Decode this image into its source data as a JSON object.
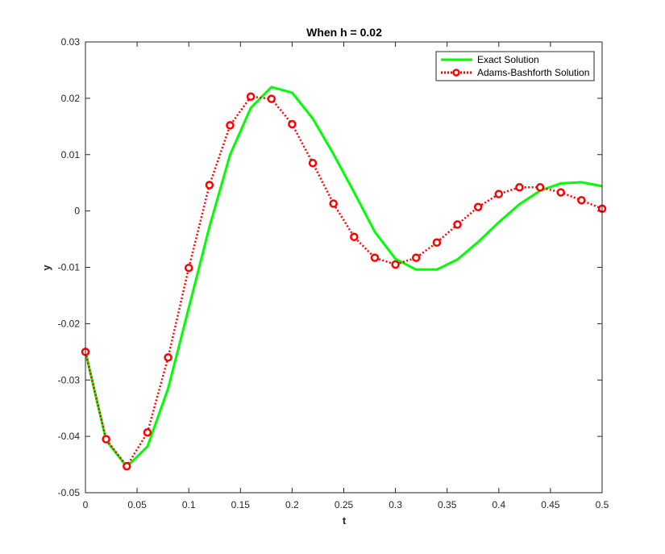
{
  "chart_data": {
    "type": "line",
    "title": "When h = 0.02",
    "xlabel": "t",
    "ylabel": "y",
    "xlim": [
      0,
      0.5
    ],
    "ylim": [
      -0.05,
      0.03
    ],
    "x_ticks": [
      0,
      0.05,
      0.1,
      0.15,
      0.2,
      0.25,
      0.3,
      0.35,
      0.4,
      0.45,
      0.5
    ],
    "x_tick_labels": [
      "0",
      "0.05",
      "0.1",
      "0.15",
      "0.2",
      "0.25",
      "0.3",
      "0.35",
      "0.4",
      "0.45",
      "0.5"
    ],
    "y_ticks": [
      -0.05,
      -0.04,
      -0.03,
      -0.02,
      -0.01,
      0,
      0.01,
      0.02,
      0.03
    ],
    "y_tick_labels": [
      "-0.05",
      "-0.04",
      "-0.03",
      "-0.02",
      "-0.01",
      "0",
      "0.01",
      "0.02",
      "0.03"
    ],
    "grid": false,
    "legend_position": "top-right",
    "series": [
      {
        "name": "Exact Solution",
        "color": "#00ff00",
        "style": "solid",
        "marker": "none",
        "x": [
          0,
          0.02,
          0.04,
          0.06,
          0.08,
          0.1,
          0.12,
          0.14,
          0.16,
          0.18,
          0.2,
          0.22,
          0.24,
          0.26,
          0.28,
          0.3,
          0.32,
          0.34,
          0.36,
          0.38,
          0.4,
          0.42,
          0.44,
          0.46,
          0.48,
          0.5
        ],
        "y": [
          -0.025,
          -0.0407,
          -0.0454,
          -0.0418,
          -0.0315,
          -0.0172,
          -0.0028,
          0.01,
          0.0183,
          0.022,
          0.021,
          0.0164,
          0.0101,
          0.0033,
          -0.0037,
          -0.0085,
          -0.0104,
          -0.0104,
          -0.0086,
          -0.0055,
          -0.002,
          0.0012,
          0.0036,
          0.0049,
          0.0051,
          0.0044
        ]
      },
      {
        "name": "Adams-Bashforth Solution",
        "color": "#ff0000",
        "style": "dotted",
        "marker": "circle",
        "x": [
          0,
          0.02,
          0.04,
          0.06,
          0.08,
          0.1,
          0.12,
          0.14,
          0.16,
          0.18,
          0.2,
          0.22,
          0.24,
          0.26,
          0.28,
          0.3,
          0.32,
          0.34,
          0.36,
          0.38,
          0.4,
          0.42,
          0.44,
          0.46,
          0.48,
          0.5
        ],
        "y": [
          -0.025,
          -0.0405,
          -0.0453,
          -0.0393,
          -0.026,
          -0.0101,
          0.0046,
          0.0152,
          0.0203,
          0.0199,
          0.0154,
          0.0085,
          0.0013,
          -0.0046,
          -0.0083,
          -0.0095,
          -0.0083,
          -0.0056,
          -0.0024,
          0.0007,
          0.003,
          0.0042,
          0.0042,
          0.0033,
          0.0019,
          0.0004
        ]
      }
    ]
  }
}
